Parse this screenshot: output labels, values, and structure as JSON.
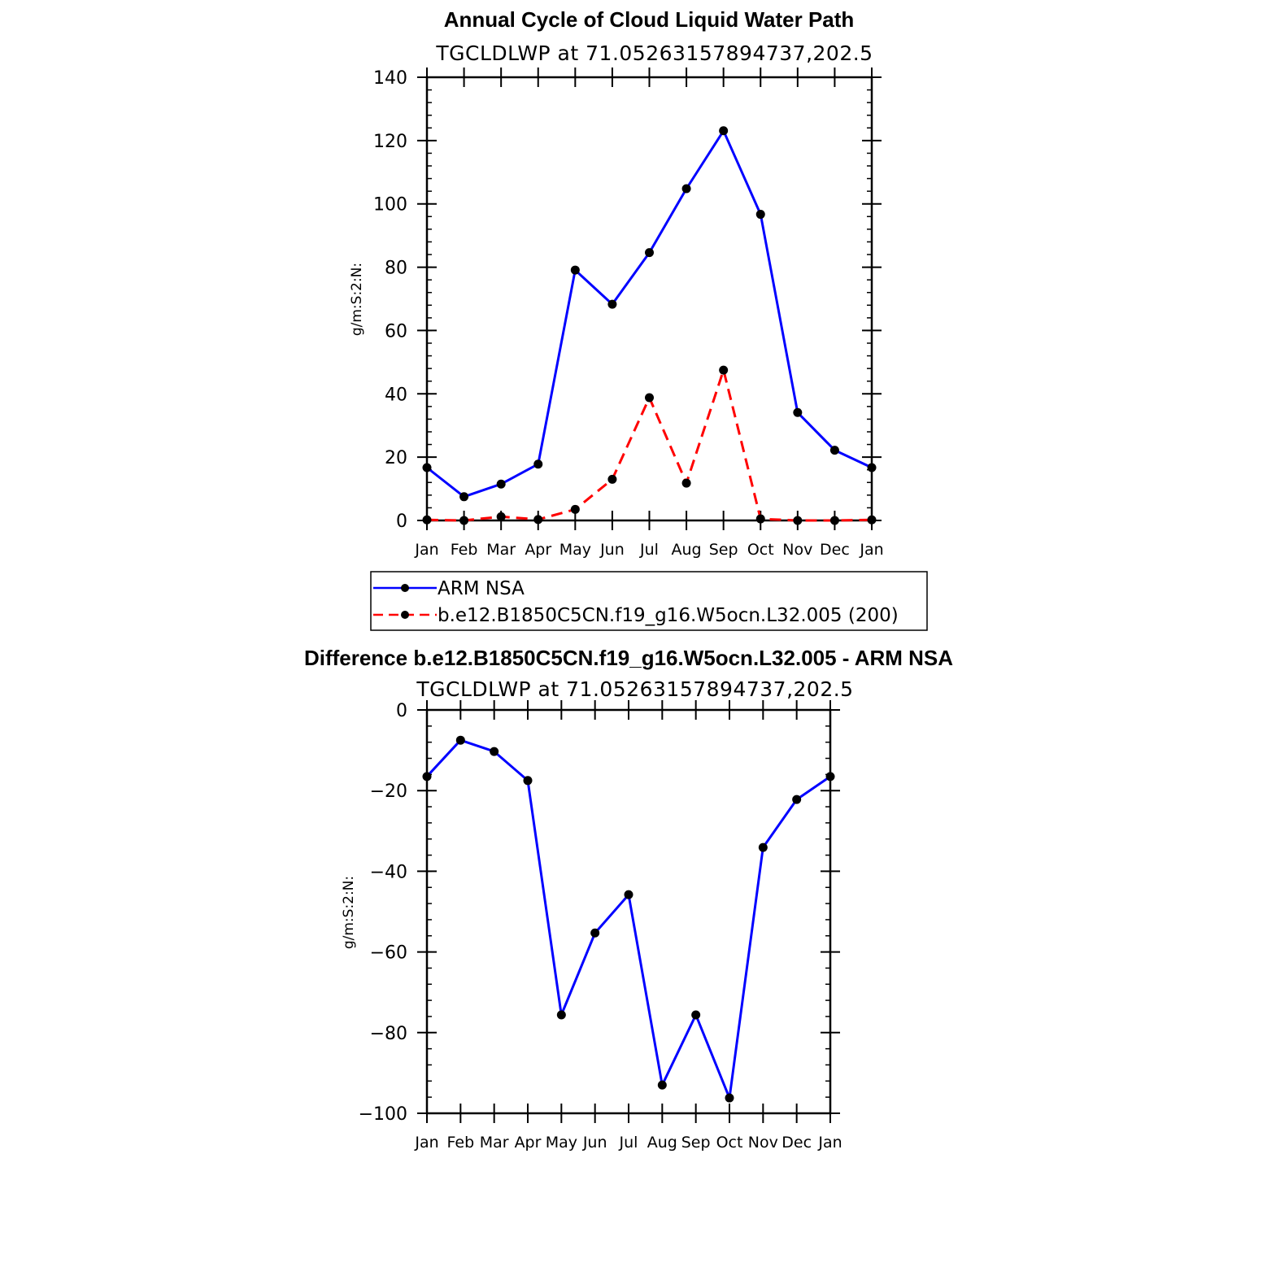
{
  "chart_data": [
    {
      "type": "line",
      "title": "Annual Cycle of Cloud Liquid Water Path",
      "subtitle": "TGCLDLWP at 71.05263157894737,202.5",
      "ylabel": "g/m:S:2:N:",
      "xlabel": "",
      "categories": [
        "Jan",
        "Feb",
        "Mar",
        "Apr",
        "May",
        "Jun",
        "Jul",
        "Aug",
        "Sep",
        "Oct",
        "Nov",
        "Dec",
        "Jan"
      ],
      "ylim": [
        0,
        140
      ],
      "yticks": [
        0,
        20,
        40,
        60,
        80,
        100,
        120,
        140
      ],
      "series": [
        {
          "name": "ARM NSA",
          "color": "#0000ff",
          "dash": "solid",
          "values": [
            16.7,
            7.5,
            11.5,
            17.8,
            79.1,
            68.3,
            84.6,
            104.8,
            123.1,
            96.7,
            34.1,
            22.2,
            16.7
          ]
        },
        {
          "name": "b.e12.B1850C5CN.f19_g16.W5ocn.L32.005 (200)",
          "color": "#ff0000",
          "dash": "dashed",
          "values": [
            0.2,
            0.0,
            1.2,
            0.3,
            3.5,
            13.0,
            38.8,
            11.8,
            47.5,
            0.5,
            0.0,
            0.0,
            0.2
          ]
        }
      ],
      "legend": "below"
    },
    {
      "type": "line",
      "title": "Difference b.e12.B1850C5CN.f19_g16.W5ocn.L32.005 - ARM NSA",
      "subtitle": "TGCLDLWP at 71.05263157894737,202.5",
      "ylabel": "g/m:S:2:N:",
      "xlabel": "",
      "categories": [
        "Jan",
        "Feb",
        "Mar",
        "Apr",
        "May",
        "Jun",
        "Jul",
        "Aug",
        "Sep",
        "Oct",
        "Nov",
        "Dec",
        "Jan"
      ],
      "ylim": [
        -100,
        0
      ],
      "yticks": [
        0,
        -20,
        -40,
        -60,
        -80,
        -100
      ],
      "ytick_labels": [
        "0",
        "−20",
        "−40",
        "−60",
        "−80",
        "−100"
      ],
      "series": [
        {
          "color": "#0000ff",
          "dash": "solid",
          "values": [
            -16.5,
            -7.5,
            -10.3,
            -17.5,
            -75.6,
            -55.3,
            -45.8,
            -93.0,
            -75.6,
            -96.2,
            -34.1,
            -22.2,
            -16.5
          ]
        }
      ]
    }
  ]
}
